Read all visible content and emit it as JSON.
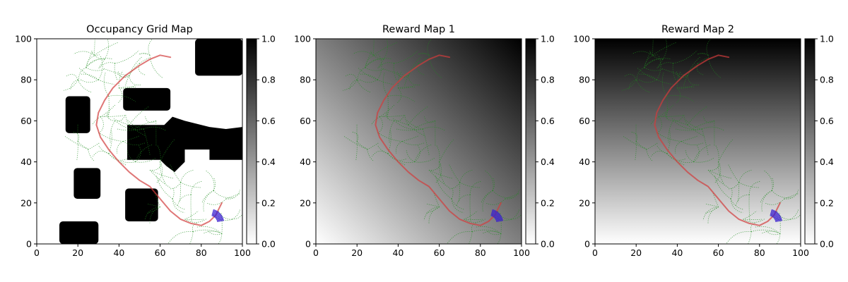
{
  "figure": {
    "colors": {
      "obstacle": "#000000",
      "free": "#ffffff",
      "tree": "#1e8c1e",
      "path": "#d23c3c",
      "samples": "#3a1fd0"
    }
  },
  "chart_data": [
    {
      "type": "heatmap",
      "title": "Occupancy Grid Map",
      "xlim": [
        0,
        100
      ],
      "ylim": [
        0,
        100
      ],
      "xticks": [
        "0",
        "20",
        "40",
        "60",
        "80",
        "100"
      ],
      "yticks": [
        "0",
        "20",
        "40",
        "60",
        "80",
        "100"
      ],
      "colorbar": {
        "range": [
          0,
          1
        ],
        "ticks": [
          "0.0",
          "0.2",
          "0.4",
          "0.6",
          "0.8",
          "1.0"
        ],
        "colormap": "gray_r"
      },
      "background": "occupancy",
      "obstacles": [
        {
          "kind": "rect",
          "x0": 77,
          "x1": 100,
          "y0": 82,
          "y1": 100
        },
        {
          "kind": "rect",
          "x0": 42,
          "x1": 65,
          "y0": 65,
          "y1": 76
        },
        {
          "kind": "rect",
          "x0": 14,
          "x1": 26,
          "y0": 54,
          "y1": 72
        },
        {
          "kind": "poly",
          "pts": [
            [
              44,
              58
            ],
            [
              62,
              58
            ],
            [
              66,
              62
            ],
            [
              72,
              60
            ],
            [
              84,
              57
            ],
            [
              92,
              56
            ],
            [
              100,
              57
            ],
            [
              100,
              41
            ],
            [
              84,
              41
            ],
            [
              84,
              46
            ],
            [
              72,
              46
            ],
            [
              72,
              40
            ],
            [
              67,
              35
            ],
            [
              63,
              38
            ],
            [
              60,
              41
            ],
            [
              44,
              41
            ]
          ]
        },
        {
          "kind": "rect",
          "x0": 18,
          "x1": 31,
          "y0": 22,
          "y1": 37
        },
        {
          "kind": "rect",
          "x0": 43,
          "x1": 59,
          "y0": 11,
          "y1": 27
        },
        {
          "kind": "rect",
          "x0": 11,
          "x1": 30,
          "y0": 0,
          "y1": 11
        }
      ]
    },
    {
      "type": "heatmap",
      "title": "Reward Map 1",
      "xlim": [
        0,
        100
      ],
      "ylim": [
        0,
        100
      ],
      "xticks": [
        "0",
        "20",
        "40",
        "60",
        "80",
        "100"
      ],
      "yticks": [
        "0",
        "20",
        "40",
        "60",
        "80",
        "100"
      ],
      "colorbar": {
        "range": [
          0,
          1
        ],
        "ticks": [
          "0.0",
          "0.2",
          "0.4",
          "0.6",
          "0.8",
          "1.0"
        ],
        "colormap": "gray_r"
      },
      "background": "diagonal",
      "gradient": {
        "low_corner": "bottom-left",
        "high_corner": "top-right"
      }
    },
    {
      "type": "heatmap",
      "title": "Reward Map 2",
      "xlim": [
        0,
        100
      ],
      "ylim": [
        0,
        100
      ],
      "xticks": [
        "0",
        "20",
        "40",
        "60",
        "80",
        "100"
      ],
      "yticks": [
        "0",
        "20",
        "40",
        "60",
        "80",
        "100"
      ],
      "colorbar": {
        "range": [
          0,
          1
        ],
        "ticks": [
          "0.0",
          "0.2",
          "0.4",
          "0.6",
          "0.8",
          "1.0"
        ],
        "colormap": "gray_r"
      },
      "background": "vertical",
      "gradient": {
        "low_edge": "bottom",
        "high_edge": "top"
      }
    }
  ],
  "overlay": {
    "best_path": [
      [
        90,
        20
      ],
      [
        87,
        14
      ],
      [
        84,
        11
      ],
      [
        80,
        9
      ],
      [
        75,
        10
      ],
      [
        70,
        12
      ],
      [
        65,
        16
      ],
      [
        60,
        22
      ],
      [
        55,
        28
      ],
      [
        50,
        31
      ],
      [
        45,
        35
      ],
      [
        40,
        40
      ],
      [
        35,
        46
      ],
      [
        31,
        52
      ],
      [
        29,
        58
      ],
      [
        30,
        64
      ],
      [
        33,
        70
      ],
      [
        37,
        76
      ],
      [
        43,
        82
      ],
      [
        50,
        87
      ],
      [
        55,
        90
      ],
      [
        60,
        92
      ],
      [
        65,
        91
      ]
    ],
    "sample_fan": {
      "center": [
        84,
        10
      ],
      "angle_start": 10,
      "angle_end": 75,
      "radius_min": 4,
      "radius_max": 7
    },
    "tree_nodes": [
      [
        28,
        92
      ],
      [
        33,
        90
      ],
      [
        24,
        86
      ],
      [
        38,
        88
      ],
      [
        20,
        80
      ],
      [
        30,
        80
      ],
      [
        35,
        72
      ],
      [
        40,
        76
      ],
      [
        45,
        82
      ],
      [
        50,
        88
      ],
      [
        55,
        92
      ],
      [
        31,
        62
      ],
      [
        38,
        60
      ],
      [
        45,
        58
      ],
      [
        52,
        56
      ],
      [
        58,
        60
      ],
      [
        42,
        50
      ],
      [
        35,
        44
      ],
      [
        25,
        46
      ],
      [
        20,
        50
      ],
      [
        48,
        40
      ],
      [
        55,
        36
      ],
      [
        60,
        40
      ],
      [
        70,
        30
      ],
      [
        75,
        24
      ],
      [
        66,
        22
      ],
      [
        60,
        18
      ],
      [
        72,
        12
      ],
      [
        76,
        6
      ],
      [
        86,
        26
      ],
      [
        92,
        22
      ],
      [
        95,
        12
      ],
      [
        90,
        5
      ]
    ]
  }
}
